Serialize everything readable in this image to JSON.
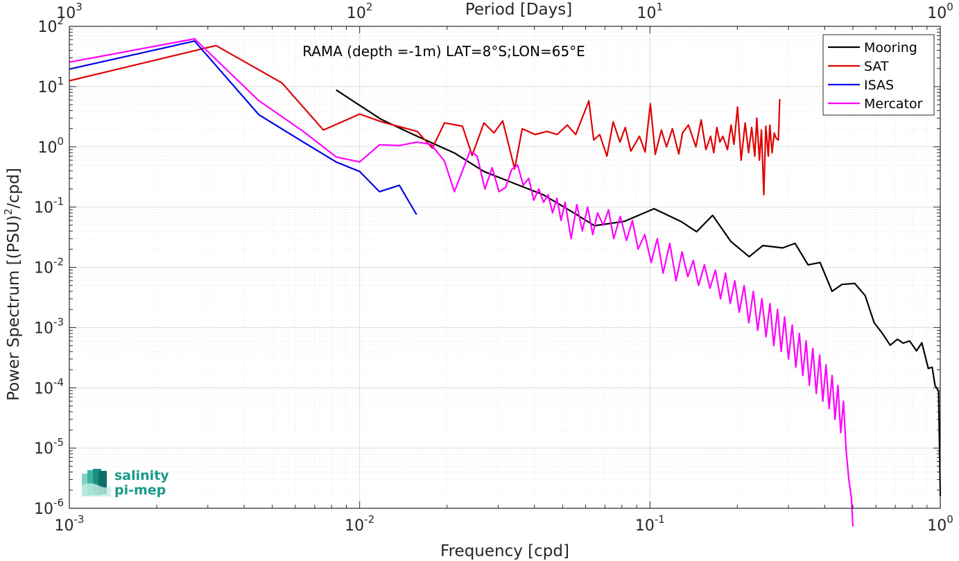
{
  "chart_data": {
    "type": "line",
    "title": "RAMA (depth =-1m) LAT=8°S;LON=65°E",
    "xlabel": "Frequency [cpd]",
    "ylabel_main": "Power Spectrum [(PSU)",
    "ylabel_sup": "2",
    "ylabel_tail": "/cpd]",
    "x2label": "Period [Days]",
    "xscale": "log",
    "yscale": "log",
    "xlim": [
      0.001,
      1
    ],
    "ylim": [
      1e-06,
      100
    ],
    "grid": true,
    "legend_position": "top-right",
    "x_ticks": [
      {
        "base": "10",
        "exp": "-3"
      },
      {
        "base": "10",
        "exp": "-2"
      },
      {
        "base": "10",
        "exp": "-1"
      },
      {
        "base": "10",
        "exp": "0"
      }
    ],
    "x2_ticks": [
      {
        "base": "10",
        "exp": "3"
      },
      {
        "base": "10",
        "exp": "2"
      },
      {
        "base": "10",
        "exp": "1"
      },
      {
        "base": "10",
        "exp": "0"
      }
    ],
    "y_ticks": [
      {
        "base": "10",
        "exp": "2"
      },
      {
        "base": "10",
        "exp": "1"
      },
      {
        "base": "10",
        "exp": "0"
      },
      {
        "base": "10",
        "exp": "-1"
      },
      {
        "base": "10",
        "exp": "-2"
      },
      {
        "base": "10",
        "exp": "-3"
      },
      {
        "base": "10",
        "exp": "-4"
      },
      {
        "base": "10",
        "exp": "-5"
      },
      {
        "base": "10",
        "exp": "-6"
      }
    ],
    "series": [
      {
        "name": "Mooring",
        "color": "#000000",
        "x": [
          0.0083,
          0.0118,
          0.0149,
          0.0212,
          0.0268,
          0.0339,
          0.0429,
          0.0542,
          0.0644,
          0.0816,
          0.1033,
          0.1284,
          0.1448,
          0.1644,
          0.1898,
          0.2197,
          0.2448,
          0.2867,
          0.3161,
          0.3503,
          0.3855,
          0.4238,
          0.4581,
          0.5072,
          0.5509,
          0.5922,
          0.6283,
          0.6723,
          0.7119,
          0.7453,
          0.7841,
          0.8279,
          0.8638,
          0.9092,
          0.9378,
          0.9592,
          0.9867,
          1.0
        ],
        "y": [
          8.8,
          2.9,
          1.7,
          0.79,
          0.39,
          0.25,
          0.16,
          0.082,
          0.049,
          0.058,
          0.094,
          0.057,
          0.039,
          0.073,
          0.027,
          0.015,
          0.023,
          0.021,
          0.025,
          0.011,
          0.012,
          0.004,
          0.0052,
          0.0054,
          0.0034,
          0.0012,
          0.00083,
          0.00051,
          0.00064,
          0.00055,
          0.0006,
          0.00041,
          0.00056,
          0.00021,
          0.00022,
          0.00011,
          8.8e-05,
          1.6e-06
        ]
      },
      {
        "name": "SAT",
        "color": "#e00000",
        "x": [
          0.001,
          0.0032,
          0.0054,
          0.0075,
          0.01,
          0.0119,
          0.0158,
          0.0178,
          0.0196,
          0.0226,
          0.0244,
          0.0268,
          0.029,
          0.0311,
          0.0342,
          0.0363,
          0.0402,
          0.0442,
          0.0479,
          0.0519,
          0.0555,
          0.0616,
          0.064,
          0.0671,
          0.0711,
          0.0747,
          0.0788,
          0.0822,
          0.0859,
          0.092,
          0.0962,
          0.1003,
          0.1043,
          0.1095,
          0.114,
          0.1195,
          0.1257,
          0.1295,
          0.1357,
          0.144,
          0.15,
          0.1558,
          0.1618,
          0.1658,
          0.17,
          0.1741,
          0.1783,
          0.1849,
          0.1903,
          0.1947,
          0.2003,
          0.2061,
          0.2127,
          0.2186,
          0.224,
          0.2296,
          0.2333,
          0.2383,
          0.2421,
          0.2467,
          0.2506,
          0.2557,
          0.2587,
          0.2634,
          0.2681,
          0.2718,
          0.2769,
          0.28
        ],
        "y": [
          12.5,
          48,
          11.5,
          1.9,
          3.5,
          2.6,
          1.8,
          0.95,
          2.5,
          2.2,
          0.72,
          2.5,
          1.7,
          2.7,
          0.43,
          2.0,
          1.6,
          1.8,
          1.6,
          2.3,
          1.6,
          5.8,
          1.3,
          1.6,
          0.7,
          2.6,
          1.2,
          2.1,
          0.85,
          1.5,
          0.82,
          5.2,
          0.75,
          1.9,
          1.0,
          2.0,
          0.76,
          1.7,
          2.3,
          1.0,
          2.8,
          0.9,
          1.5,
          0.8,
          2.1,
          1.2,
          1.5,
          0.9,
          2.3,
          1.1,
          4.6,
          0.6,
          2.5,
          0.8,
          2.1,
          0.7,
          3.0,
          0.6,
          1.9,
          0.16,
          2.2,
          0.7,
          2.3,
          0.8,
          1.7,
          1.4,
          1.3,
          6.2
        ]
      },
      {
        "name": "ISAS",
        "color": "#0000e6",
        "x": [
          0.001,
          0.0027,
          0.0045,
          0.0064,
          0.0083,
          0.01,
          0.0117,
          0.0137,
          0.0157
        ],
        "y": [
          19.5,
          57,
          3.4,
          1.2,
          0.56,
          0.39,
          0.18,
          0.23,
          0.075
        ]
      },
      {
        "name": "Mercator",
        "color": "#ff00ff",
        "x": [
          0.001,
          0.0027,
          0.0045,
          0.0064,
          0.0083,
          0.01,
          0.0117,
          0.0137,
          0.0157,
          0.0176,
          0.0196,
          0.0212,
          0.024,
          0.0254,
          0.027,
          0.0286,
          0.0302,
          0.0318,
          0.0334,
          0.035,
          0.0366,
          0.0382,
          0.0398,
          0.0414,
          0.043,
          0.0446,
          0.0462,
          0.0478,
          0.0494,
          0.051,
          0.0535,
          0.056,
          0.0585,
          0.061,
          0.0635,
          0.066,
          0.069,
          0.072,
          0.075,
          0.079,
          0.083,
          0.087,
          0.091,
          0.096,
          0.101,
          0.106,
          0.111,
          0.117,
          0.123,
          0.129,
          0.135,
          0.141,
          0.147,
          0.154,
          0.161,
          0.168,
          0.175,
          0.182,
          0.189,
          0.196,
          0.203,
          0.211,
          0.219,
          0.227,
          0.235,
          0.243,
          0.251,
          0.259,
          0.267,
          0.275,
          0.283,
          0.291,
          0.3,
          0.309,
          0.318,
          0.327,
          0.336,
          0.345,
          0.354,
          0.364,
          0.374,
          0.384,
          0.394,
          0.404,
          0.414,
          0.424,
          0.434,
          0.444,
          0.454,
          0.464,
          0.474,
          0.484,
          0.494,
          0.5
        ],
        "y": [
          25.5,
          62,
          5.8,
          1.8,
          0.68,
          0.56,
          1.08,
          1.05,
          1.2,
          1.1,
          0.58,
          0.18,
          0.85,
          0.7,
          0.2,
          0.45,
          0.18,
          0.21,
          0.42,
          0.5,
          0.23,
          0.3,
          0.13,
          0.2,
          0.12,
          0.16,
          0.08,
          0.14,
          0.06,
          0.12,
          0.03,
          0.11,
          0.04,
          0.1,
          0.035,
          0.08,
          0.05,
          0.09,
          0.03,
          0.07,
          0.028,
          0.06,
          0.02,
          0.035,
          0.012,
          0.03,
          0.008,
          0.025,
          0.006,
          0.018,
          0.007,
          0.013,
          0.005,
          0.011,
          0.0045,
          0.009,
          0.003,
          0.008,
          0.0025,
          0.006,
          0.0018,
          0.005,
          0.0012,
          0.004,
          0.0009,
          0.003,
          0.0007,
          0.0025,
          0.0005,
          0.002,
          0.0004,
          0.0015,
          0.0003,
          0.0011,
          0.00022,
          0.0008,
          0.00016,
          0.0006,
          0.00011,
          0.00045,
          8e-05,
          0.00035,
          6e-05,
          0.00024,
          4.5e-05,
          0.00016,
          3e-05,
          0.00011,
          1.8e-05,
          6e-05,
          9e-06,
          3e-06,
          1.5e-06,
          5e-07
        ]
      }
    ]
  },
  "logo": {
    "line1": "salinity",
    "line2": "pi-mep"
  }
}
